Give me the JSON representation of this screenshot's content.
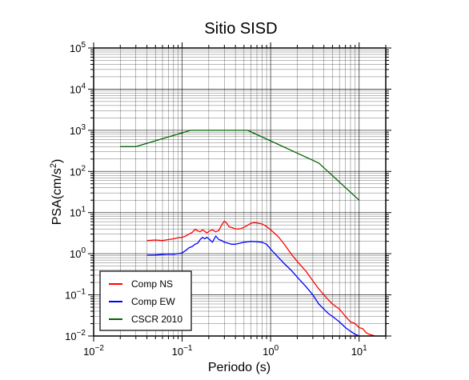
{
  "chart_data": {
    "type": "line",
    "title": "Sitio SISD",
    "xlabel": "Periodo (s)",
    "ylabel": "PSA(cm/s2)",
    "ylabel_parts": {
      "base": "PSA(cm/s",
      "sup": "2",
      "close": ")"
    },
    "xscale": "log",
    "yscale": "log",
    "xlim": [
      0.01,
      20
    ],
    "ylim": [
      0.01,
      100000
    ],
    "grid": true,
    "legend_position": "bottom-left",
    "x_tick_labels": [
      {
        "base": "10",
        "exp": "−2",
        "value": 0.01
      },
      {
        "base": "10",
        "exp": "−1",
        "value": 0.1
      },
      {
        "base": "10",
        "exp": "0",
        "value": 1
      },
      {
        "base": "10",
        "exp": "1",
        "value": 10
      }
    ],
    "y_tick_labels": [
      {
        "base": "10",
        "exp": "−2",
        "value": 0.01
      },
      {
        "base": "10",
        "exp": "−1",
        "value": 0.1
      },
      {
        "base": "10",
        "exp": "0",
        "value": 1
      },
      {
        "base": "10",
        "exp": "1",
        "value": 10
      },
      {
        "base": "10",
        "exp": "2",
        "value": 100
      },
      {
        "base": "10",
        "exp": "3",
        "value": 1000
      },
      {
        "base": "10",
        "exp": "4",
        "value": 10000
      },
      {
        "base": "10",
        "exp": "5",
        "value": 100000
      }
    ],
    "series": [
      {
        "name": "Comp NS",
        "color": "#ff0000",
        "points": [
          [
            0.04,
            2.1
          ],
          [
            0.05,
            2.15
          ],
          [
            0.06,
            2.1
          ],
          [
            0.07,
            2.2
          ],
          [
            0.08,
            2.3
          ],
          [
            0.09,
            2.45
          ],
          [
            0.1,
            2.5
          ],
          [
            0.11,
            2.7
          ],
          [
            0.12,
            3.0
          ],
          [
            0.13,
            3.3
          ],
          [
            0.14,
            3.9
          ],
          [
            0.15,
            3.6
          ],
          [
            0.16,
            3.4
          ],
          [
            0.17,
            3.8
          ],
          [
            0.18,
            3.5
          ],
          [
            0.19,
            3.2
          ],
          [
            0.2,
            3.5
          ],
          [
            0.22,
            3.8
          ],
          [
            0.24,
            3.4
          ],
          [
            0.26,
            3.7
          ],
          [
            0.28,
            5.0
          ],
          [
            0.3,
            6.2
          ],
          [
            0.32,
            5.5
          ],
          [
            0.34,
            4.5
          ],
          [
            0.37,
            4.3
          ],
          [
            0.4,
            4.0
          ],
          [
            0.45,
            4.0
          ],
          [
            0.5,
            4.4
          ],
          [
            0.55,
            4.9
          ],
          [
            0.6,
            5.5
          ],
          [
            0.65,
            5.7
          ],
          [
            0.7,
            5.6
          ],
          [
            0.8,
            5.3
          ],
          [
            0.9,
            4.6
          ],
          [
            1.0,
            3.8
          ],
          [
            1.2,
            2.7
          ],
          [
            1.4,
            1.8
          ],
          [
            1.7,
            1.0
          ],
          [
            2.0,
            0.65
          ],
          [
            2.5,
            0.38
          ],
          [
            3.0,
            0.22
          ],
          [
            3.5,
            0.14
          ],
          [
            4.0,
            0.1
          ],
          [
            4.5,
            0.075
          ],
          [
            5.0,
            0.06
          ],
          [
            6.0,
            0.045
          ],
          [
            7.0,
            0.03
          ],
          [
            8.0,
            0.022
          ],
          [
            9.0,
            0.02
          ],
          [
            10.0,
            0.016
          ],
          [
            11.0,
            0.015
          ],
          [
            12.0,
            0.012
          ],
          [
            13.0,
            0.011
          ],
          [
            14.0,
            0.0105
          ],
          [
            15.0,
            0.01
          ]
        ]
      },
      {
        "name": "Comp EW",
        "color": "#0000ff",
        "points": [
          [
            0.04,
            0.92
          ],
          [
            0.05,
            0.93
          ],
          [
            0.06,
            0.96
          ],
          [
            0.07,
            0.98
          ],
          [
            0.08,
            0.97
          ],
          [
            0.09,
            1.0
          ],
          [
            0.1,
            1.05
          ],
          [
            0.11,
            1.2
          ],
          [
            0.12,
            1.4
          ],
          [
            0.13,
            1.5
          ],
          [
            0.14,
            1.7
          ],
          [
            0.15,
            1.8
          ],
          [
            0.16,
            2.2
          ],
          [
            0.17,
            2.5
          ],
          [
            0.18,
            2.3
          ],
          [
            0.19,
            2.5
          ],
          [
            0.2,
            2.3
          ],
          [
            0.22,
            1.9
          ],
          [
            0.24,
            2.7
          ],
          [
            0.26,
            2.2
          ],
          [
            0.28,
            2.1
          ],
          [
            0.3,
            1.9
          ],
          [
            0.33,
            1.8
          ],
          [
            0.36,
            1.7
          ],
          [
            0.4,
            1.7
          ],
          [
            0.45,
            1.8
          ],
          [
            0.5,
            1.9
          ],
          [
            0.6,
            2.0
          ],
          [
            0.7,
            1.95
          ],
          [
            0.8,
            1.9
          ],
          [
            0.9,
            1.7
          ],
          [
            1.0,
            1.3
          ],
          [
            1.2,
            0.85
          ],
          [
            1.4,
            0.6
          ],
          [
            1.7,
            0.4
          ],
          [
            2.0,
            0.27
          ],
          [
            2.5,
            0.16
          ],
          [
            3.0,
            0.1
          ],
          [
            3.5,
            0.06
          ],
          [
            4.0,
            0.045
          ],
          [
            4.5,
            0.035
          ],
          [
            5.0,
            0.03
          ],
          [
            6.0,
            0.022
          ],
          [
            7.0,
            0.016
          ],
          [
            8.0,
            0.013
          ],
          [
            9.0,
            0.011
          ],
          [
            10.0,
            0.01
          ]
        ]
      },
      {
        "name": "CSCR 2010",
        "color": "#006400",
        "points": [
          [
            0.02,
            400
          ],
          [
            0.03,
            400
          ],
          [
            0.125,
            1000
          ],
          [
            0.55,
            1000
          ],
          [
            3.5,
            160
          ],
          [
            10.0,
            20
          ]
        ]
      }
    ]
  }
}
